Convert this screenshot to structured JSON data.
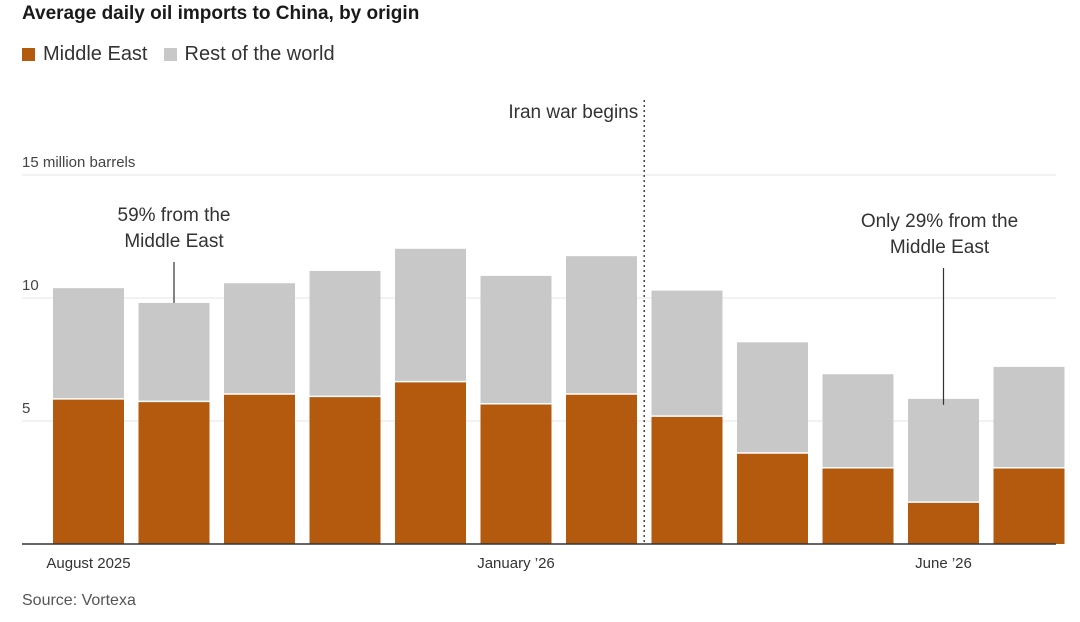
{
  "colors": {
    "middle_east": "#b35a0f",
    "rest_of_world": "#c8c8c8",
    "grid": "#e6e6e6",
    "axis": "#333333"
  },
  "chart_data": {
    "type": "bar",
    "stacked": true,
    "title": "Average daily oil imports to China, by origin",
    "source": "Source: Vortexa",
    "unit_label": "15 million barrels",
    "ylim": [
      0,
      15
    ],
    "yticks": [
      {
        "value": 5,
        "label": "5"
      },
      {
        "value": 10,
        "label": "10"
      },
      {
        "value": 15,
        "label": "15 million barrels"
      }
    ],
    "grid": true,
    "legend": "top-left",
    "categories": [
      "August 2025",
      "",
      "",
      "",
      "",
      "January ’26",
      "",
      "",
      "",
      "",
      "June ’26",
      ""
    ],
    "x_labels": [
      {
        "index": 0,
        "label": "August 2025"
      },
      {
        "index": 5,
        "label": "January ’26"
      },
      {
        "index": 10,
        "label": "June ’26"
      }
    ],
    "series": [
      {
        "name": "Middle East",
        "color": "#b35a0f",
        "values": [
          5.9,
          5.8,
          6.1,
          6.0,
          6.6,
          5.7,
          6.1,
          5.2,
          3.7,
          3.1,
          1.7,
          3.1
        ]
      },
      {
        "name": "Rest of the world",
        "color": "#c8c8c8",
        "values": [
          4.5,
          4.0,
          4.5,
          5.1,
          5.4,
          5.2,
          5.6,
          5.1,
          4.5,
          3.8,
          4.2,
          4.1
        ]
      }
    ],
    "event_marker": {
      "after_index": 6,
      "label": "Iran war begins"
    },
    "annotations": [
      {
        "index": 1,
        "lines": [
          "59% from the",
          "Middle East"
        ]
      },
      {
        "index": 10,
        "lines": [
          "Only 29% from the",
          "Middle East"
        ]
      }
    ]
  }
}
